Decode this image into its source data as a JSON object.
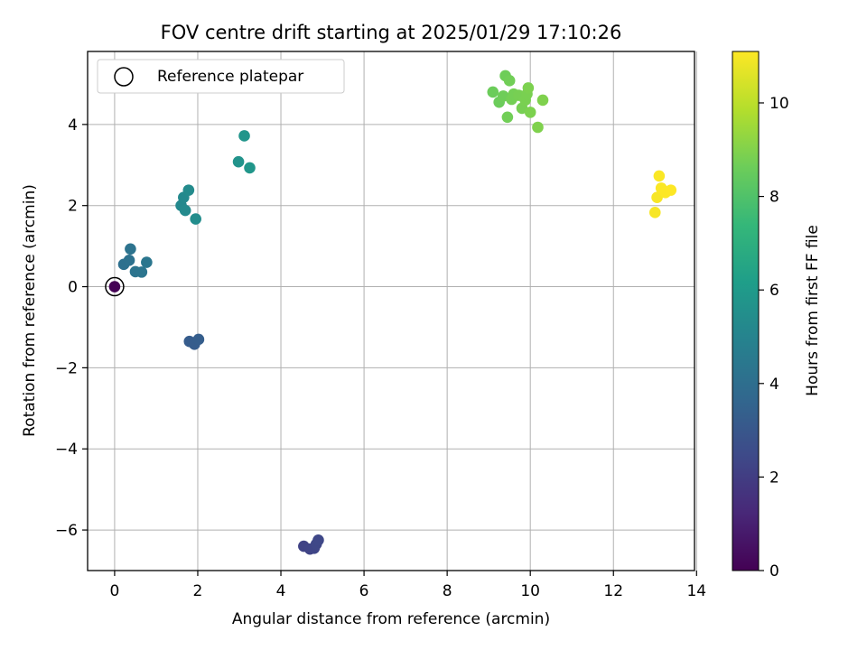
{
  "chart_data": {
    "type": "scatter",
    "title": "FOV centre drift starting at 2025/01/29 17:10:26",
    "xlabel": "Angular distance from reference (arcmin)",
    "ylabel": "Rotation from reference (arcmin)",
    "xlim": [
      -0.65,
      13.95
    ],
    "ylim": [
      -7.0,
      5.8
    ],
    "xticks": [
      0,
      2,
      4,
      6,
      8,
      10,
      12,
      14
    ],
    "yticks": [
      -6,
      -4,
      -2,
      0,
      2,
      4
    ],
    "grid": true,
    "legend": {
      "placement": "upper-left",
      "entries": [
        "Reference platepar"
      ]
    },
    "colorbar": {
      "label": "Hours from first FF file",
      "range": [
        0,
        11.1
      ],
      "ticks": [
        0,
        2,
        4,
        6,
        8,
        10
      ],
      "colormap": "viridis"
    },
    "reference_point": {
      "x": 0,
      "y": 0
    },
    "points": [
      {
        "x": 0.0,
        "y": 0.0,
        "c": 0.0
      },
      {
        "x": 4.55,
        "y": -6.4,
        "c": 2.2
      },
      {
        "x": 4.7,
        "y": -6.47,
        "c": 2.25
      },
      {
        "x": 4.8,
        "y": -6.45,
        "c": 2.3
      },
      {
        "x": 4.85,
        "y": -6.35,
        "c": 2.35
      },
      {
        "x": 4.9,
        "y": -6.25,
        "c": 2.4
      },
      {
        "x": 1.8,
        "y": -1.35,
        "c": 3.2
      },
      {
        "x": 1.92,
        "y": -1.42,
        "c": 3.25
      },
      {
        "x": 2.02,
        "y": -1.3,
        "c": 3.3
      },
      {
        "x": 0.22,
        "y": 0.55,
        "c": 4.1
      },
      {
        "x": 0.35,
        "y": 0.65,
        "c": 4.15
      },
      {
        "x": 0.38,
        "y": 0.93,
        "c": 4.2
      },
      {
        "x": 0.5,
        "y": 0.37,
        "c": 4.25
      },
      {
        "x": 0.65,
        "y": 0.36,
        "c": 4.3
      },
      {
        "x": 0.77,
        "y": 0.6,
        "c": 4.35
      },
      {
        "x": 1.6,
        "y": 2.0,
        "c": 5.2
      },
      {
        "x": 1.66,
        "y": 2.2,
        "c": 5.25
      },
      {
        "x": 1.7,
        "y": 1.88,
        "c": 5.3
      },
      {
        "x": 1.78,
        "y": 2.38,
        "c": 5.35
      },
      {
        "x": 1.95,
        "y": 1.67,
        "c": 5.4
      },
      {
        "x": 2.98,
        "y": 3.08,
        "c": 5.7
      },
      {
        "x": 3.12,
        "y": 3.72,
        "c": 5.75
      },
      {
        "x": 3.25,
        "y": 2.93,
        "c": 5.8
      },
      {
        "x": 9.1,
        "y": 4.8,
        "c": 8.6
      },
      {
        "x": 9.25,
        "y": 4.55,
        "c": 8.6
      },
      {
        "x": 9.35,
        "y": 4.7,
        "c": 8.65
      },
      {
        "x": 9.4,
        "y": 5.2,
        "c": 8.65
      },
      {
        "x": 9.45,
        "y": 4.18,
        "c": 8.7
      },
      {
        "x": 9.5,
        "y": 5.08,
        "c": 8.7
      },
      {
        "x": 9.55,
        "y": 4.62,
        "c": 8.75
      },
      {
        "x": 9.6,
        "y": 4.75,
        "c": 8.75
      },
      {
        "x": 9.72,
        "y": 4.72,
        "c": 8.8
      },
      {
        "x": 9.8,
        "y": 4.4,
        "c": 8.8
      },
      {
        "x": 9.88,
        "y": 4.6,
        "c": 8.85
      },
      {
        "x": 9.92,
        "y": 4.75,
        "c": 8.85
      },
      {
        "x": 9.95,
        "y": 4.9,
        "c": 8.9
      },
      {
        "x": 10.0,
        "y": 4.3,
        "c": 8.9
      },
      {
        "x": 10.18,
        "y": 3.93,
        "c": 8.95
      },
      {
        "x": 10.3,
        "y": 4.6,
        "c": 8.95
      },
      {
        "x": 13.0,
        "y": 1.83,
        "c": 11.0
      },
      {
        "x": 13.05,
        "y": 2.2,
        "c": 11.0
      },
      {
        "x": 13.1,
        "y": 2.73,
        "c": 11.05
      },
      {
        "x": 13.15,
        "y": 2.43,
        "c": 11.05
      },
      {
        "x": 13.25,
        "y": 2.32,
        "c": 11.08
      },
      {
        "x": 13.38,
        "y": 2.38,
        "c": 11.1
      }
    ]
  }
}
